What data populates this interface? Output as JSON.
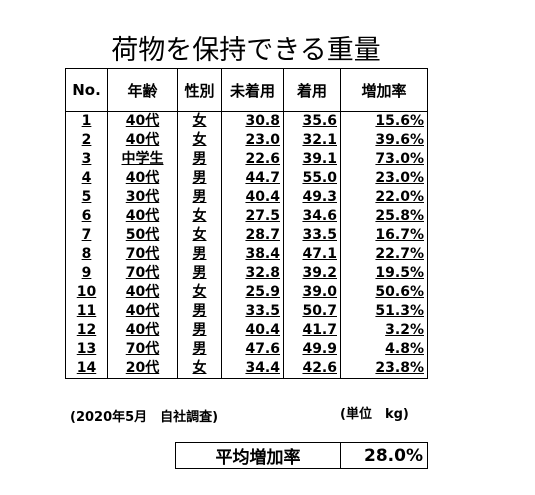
{
  "title": "荷物を保持できる重量",
  "table": {
    "headers": [
      "No.",
      "年齢",
      "性別",
      "未着用",
      "着用",
      "増加率"
    ],
    "rows": [
      [
        "1",
        "40代",
        "女",
        "30.8",
        "35.6",
        "15.6%"
      ],
      [
        "2",
        "40代",
        "女",
        "23.0",
        "32.1",
        "39.6%"
      ],
      [
        "3",
        "中学生",
        "男",
        "22.6",
        "39.1",
        "73.0%"
      ],
      [
        "4",
        "40代",
        "男",
        "44.7",
        "55.0",
        "23.0%"
      ],
      [
        "5",
        "30代",
        "男",
        "40.4",
        "49.3",
        "22.0%"
      ],
      [
        "6",
        "40代",
        "女",
        "27.5",
        "34.6",
        "25.8%"
      ],
      [
        "7",
        "50代",
        "女",
        "28.7",
        "33.5",
        "16.7%"
      ],
      [
        "8",
        "70代",
        "男",
        "38.4",
        "47.1",
        "22.7%"
      ],
      [
        "9",
        "70代",
        "男",
        "32.8",
        "39.2",
        "19.5%"
      ],
      [
        "10",
        "40代",
        "女",
        "25.9",
        "39.0",
        "50.6%"
      ],
      [
        "11",
        "40代",
        "男",
        "33.5",
        "50.7",
        "51.3%"
      ],
      [
        "12",
        "40代",
        "男",
        "40.4",
        "41.7",
        "3.2%"
      ],
      [
        "13",
        "70代",
        "男",
        "47.6",
        "49.9",
        "4.8%"
      ],
      [
        "14",
        "20代",
        "女",
        "34.4",
        "42.6",
        "23.8%"
      ]
    ]
  },
  "footnote": "(2020年5月　自社調査)",
  "unit": "(単位　kg)",
  "average": {
    "label": "平均増加率",
    "value": "28.0%"
  }
}
